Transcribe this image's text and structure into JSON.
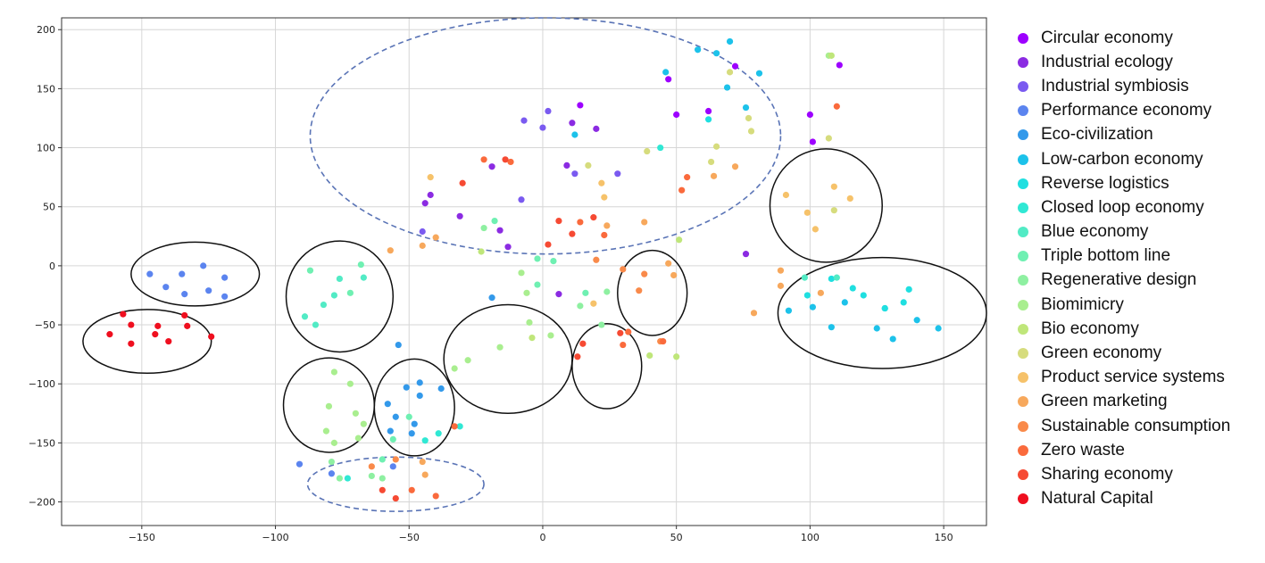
{
  "chart_data": {
    "type": "scatter",
    "title": "",
    "xlabel": "",
    "ylabel": "",
    "xlim": [
      -180,
      166
    ],
    "ylim": [
      -220,
      210
    ],
    "xticks": [
      -150,
      -100,
      -50,
      0,
      50,
      100,
      150
    ],
    "yticks": [
      -200,
      -150,
      -100,
      -50,
      0,
      50,
      100,
      150,
      200
    ],
    "xtick_labels": [
      "−150",
      "−100",
      "−50",
      "0",
      "50",
      "100",
      "150"
    ],
    "ytick_labels": [
      "−200",
      "−150",
      "−100",
      "−50",
      "0",
      "50",
      "100",
      "150",
      "200"
    ],
    "grid": true,
    "legend_position": "right",
    "series": [
      {
        "name": "Circular economy",
        "color": "#9d00ff",
        "points": [
          [
            14,
            136
          ],
          [
            47,
            158
          ],
          [
            50,
            128
          ],
          [
            62,
            131
          ],
          [
            72,
            169
          ],
          [
            100,
            128
          ],
          [
            101,
            105
          ],
          [
            111,
            170
          ]
        ]
      },
      {
        "name": "Industrial ecology",
        "color": "#8b2be2",
        "points": [
          [
            -44,
            53
          ],
          [
            -42,
            60
          ],
          [
            -31,
            42
          ],
          [
            -19,
            84
          ],
          [
            -16,
            30
          ],
          [
            -13,
            16
          ],
          [
            6,
            -24
          ],
          [
            9,
            85
          ],
          [
            11,
            121
          ],
          [
            20,
            116
          ],
          [
            76,
            10
          ]
        ]
      },
      {
        "name": "Industrial symbiosis",
        "color": "#7a5af0",
        "points": [
          [
            -45,
            29
          ],
          [
            -8,
            56
          ],
          [
            -7,
            123
          ],
          [
            0,
            117
          ],
          [
            2,
            131
          ],
          [
            12,
            78
          ],
          [
            28,
            78
          ]
        ]
      },
      {
        "name": "Performance economy",
        "color": "#5b84ef",
        "points": [
          [
            -147,
            -7
          ],
          [
            -141,
            -18
          ],
          [
            -135,
            -7
          ],
          [
            -134,
            -24
          ],
          [
            -127,
            0
          ],
          [
            -125,
            -21
          ],
          [
            -119,
            -10
          ],
          [
            -119,
            -26
          ],
          [
            -91,
            -168
          ],
          [
            -79,
            -176
          ],
          [
            -56,
            -170
          ]
        ]
      },
      {
        "name": "Eco-civilization",
        "color": "#3399ea",
        "points": [
          [
            -58,
            -117
          ],
          [
            -57,
            -140
          ],
          [
            -55,
            -128
          ],
          [
            -54,
            -67
          ],
          [
            -51,
            -103
          ],
          [
            -49,
            -142
          ],
          [
            -48,
            -134
          ],
          [
            -46,
            -110
          ],
          [
            -46,
            -99
          ],
          [
            -38,
            -104
          ],
          [
            -19,
            -27
          ]
        ]
      },
      {
        "name": "Low-carbon economy",
        "color": "#1cc2ea",
        "points": [
          [
            12,
            111
          ],
          [
            46,
            164
          ],
          [
            58,
            183
          ],
          [
            65,
            180
          ],
          [
            69,
            151
          ],
          [
            70,
            190
          ],
          [
            76,
            134
          ],
          [
            81,
            163
          ],
          [
            92,
            -38
          ],
          [
            101,
            -35
          ],
          [
            108,
            -52
          ],
          [
            113,
            -31
          ],
          [
            125,
            -53
          ],
          [
            128,
            -36
          ],
          [
            131,
            -62
          ],
          [
            140,
            -46
          ],
          [
            148,
            -53
          ]
        ]
      },
      {
        "name": "Reverse logistics",
        "color": "#1fdfe0",
        "points": [
          [
            62,
            124
          ],
          [
            99,
            -25
          ],
          [
            108,
            -11
          ],
          [
            116,
            -19
          ],
          [
            120,
            -25
          ],
          [
            128,
            -36
          ],
          [
            137,
            -20
          ],
          [
            135,
            -31
          ]
        ]
      },
      {
        "name": "Closed loop economy",
        "color": "#30e8d4",
        "points": [
          [
            -73,
            -180
          ],
          [
            -44,
            -148
          ],
          [
            -39,
            -142
          ],
          [
            -31,
            -136
          ],
          [
            44,
            100
          ]
        ]
      },
      {
        "name": "Blue economy",
        "color": "#52ebc5",
        "points": [
          [
            -89,
            -43
          ],
          [
            -85,
            -50
          ],
          [
            -82,
            -33
          ],
          [
            -78,
            -25
          ],
          [
            -76,
            -11
          ],
          [
            -67,
            -10
          ],
          [
            98,
            -10
          ],
          [
            110,
            -10
          ]
        ]
      },
      {
        "name": "Triple bottom line",
        "color": "#6ff0b2",
        "points": [
          [
            -87,
            -4
          ],
          [
            -72,
            -23
          ],
          [
            -68,
            1
          ],
          [
            -60,
            -164
          ],
          [
            -56,
            -147
          ],
          [
            -50,
            -128
          ],
          [
            -18,
            38
          ],
          [
            -2,
            6
          ],
          [
            -2,
            -16
          ],
          [
            4,
            4
          ],
          [
            16,
            -23
          ]
        ]
      },
      {
        "name": "Regenerative design",
        "color": "#8ef0a1",
        "points": [
          [
            -79,
            -166
          ],
          [
            -76,
            -180
          ],
          [
            -64,
            -178
          ],
          [
            -60,
            -180
          ],
          [
            -22,
            32
          ],
          [
            14,
            -34
          ],
          [
            22,
            -50
          ],
          [
            24,
            -22
          ]
        ]
      },
      {
        "name": "Biomimicry",
        "color": "#a9ee8f",
        "points": [
          [
            -81,
            -140
          ],
          [
            -80,
            -119
          ],
          [
            -78,
            -90
          ],
          [
            -78,
            -150
          ],
          [
            -72,
            -100
          ],
          [
            -70,
            -125
          ],
          [
            -69,
            -146
          ],
          [
            -67,
            -134
          ],
          [
            -33,
            -87
          ],
          [
            -28,
            -80
          ],
          [
            -16,
            -69
          ],
          [
            -8,
            -6
          ],
          [
            -6,
            -23
          ],
          [
            -5,
            -48
          ],
          [
            3,
            -59
          ],
          [
            107,
            178
          ]
        ]
      },
      {
        "name": "Bio economy",
        "color": "#bfe67a",
        "points": [
          [
            -23,
            12
          ],
          [
            -4,
            -61
          ],
          [
            40,
            -76
          ],
          [
            50,
            -77
          ],
          [
            51,
            22
          ],
          [
            108,
            178
          ]
        ]
      },
      {
        "name": "Green economy",
        "color": "#d6dc7d",
        "points": [
          [
            17,
            85
          ],
          [
            39,
            97
          ],
          [
            63,
            88
          ],
          [
            65,
            101
          ],
          [
            70,
            164
          ],
          [
            77,
            125
          ],
          [
            78,
            114
          ],
          [
            107,
            108
          ],
          [
            109,
            47
          ]
        ]
      },
      {
        "name": "Product service systems",
        "color": "#f6c26a",
        "points": [
          [
            -42,
            75
          ],
          [
            19,
            -32
          ],
          [
            22,
            70
          ],
          [
            23,
            58
          ],
          [
            91,
            60
          ],
          [
            99,
            45
          ],
          [
            102,
            31
          ],
          [
            109,
            67
          ],
          [
            115,
            57
          ]
        ]
      },
      {
        "name": "Green marketing",
        "color": "#f7a85c",
        "points": [
          [
            -57,
            13
          ],
          [
            -45,
            17
          ],
          [
            -40,
            24
          ],
          [
            -45,
            -166
          ],
          [
            -44,
            -177
          ],
          [
            24,
            34
          ],
          [
            38,
            37
          ],
          [
            47,
            2
          ],
          [
            49,
            -8
          ],
          [
            64,
            76
          ],
          [
            72,
            84
          ],
          [
            79,
            -40
          ],
          [
            89,
            -17
          ],
          [
            89,
            -4
          ],
          [
            104,
            -23
          ]
        ]
      },
      {
        "name": "Sustainable consumption",
        "color": "#f98a4a",
        "points": [
          [
            -64,
            -170
          ],
          [
            -55,
            -164
          ],
          [
            20,
            5
          ],
          [
            30,
            -3
          ],
          [
            36,
            -21
          ],
          [
            38,
            -7
          ],
          [
            44,
            -64
          ]
        ]
      },
      {
        "name": "Zero waste",
        "color": "#fa6a3c",
        "points": [
          [
            -49,
            -190
          ],
          [
            -40,
            -195
          ],
          [
            -33,
            -136
          ],
          [
            -22,
            90
          ],
          [
            -12,
            88
          ],
          [
            14,
            37
          ],
          [
            23,
            26
          ],
          [
            30,
            -67
          ],
          [
            32,
            -56
          ],
          [
            45,
            -64
          ],
          [
            54,
            75
          ],
          [
            52,
            64
          ],
          [
            110,
            135
          ]
        ]
      },
      {
        "name": "Sharing economy",
        "color": "#f64a33",
        "points": [
          [
            -60,
            -190
          ],
          [
            -55,
            -197
          ],
          [
            -30,
            70
          ],
          [
            -14,
            90
          ],
          [
            2,
            18
          ],
          [
            6,
            38
          ],
          [
            11,
            27
          ],
          [
            13,
            -77
          ],
          [
            15,
            -66
          ],
          [
            19,
            41
          ],
          [
            29,
            -57
          ]
        ]
      },
      {
        "name": "Natural Capital",
        "color": "#ef0f1f",
        "points": [
          [
            -162,
            -58
          ],
          [
            -157,
            -41
          ],
          [
            -154,
            -50
          ],
          [
            -154,
            -66
          ],
          [
            -145,
            -58
          ],
          [
            -144,
            -51
          ],
          [
            -140,
            -64
          ],
          [
            -134,
            -42
          ],
          [
            -133,
            -51
          ],
          [
            -124,
            -60
          ]
        ]
      }
    ],
    "annotations": [
      {
        "shape": "ellipse",
        "style": "dashed",
        "color": "#5a74b6",
        "cx": 1,
        "cy": 110,
        "rx": 88,
        "ry": 100
      },
      {
        "shape": "ellipse",
        "style": "dashed",
        "color": "#5a74b6",
        "cx": -55,
        "cy": -185,
        "rx": 33,
        "ry": 23
      },
      {
        "shape": "ellipse",
        "style": "solid",
        "color": "#111111",
        "cx": -130,
        "cy": -7,
        "rx": 24,
        "ry": 27
      },
      {
        "shape": "ellipse",
        "style": "solid",
        "color": "#111111",
        "cx": -148,
        "cy": -64,
        "rx": 24,
        "ry": 27
      },
      {
        "shape": "ellipse",
        "style": "solid",
        "color": "#111111",
        "cx": -76,
        "cy": -26,
        "rx": 20,
        "ry": 47
      },
      {
        "shape": "ellipse",
        "style": "solid",
        "color": "#111111",
        "cx": -80,
        "cy": -118,
        "rx": 17,
        "ry": 40
      },
      {
        "shape": "ellipse",
        "style": "solid",
        "color": "#111111",
        "cx": -48,
        "cy": -120,
        "rx": 15,
        "ry": 41
      },
      {
        "shape": "ellipse",
        "style": "solid",
        "color": "#111111",
        "cx": -13,
        "cy": -79,
        "rx": 24,
        "ry": 46
      },
      {
        "shape": "ellipse",
        "style": "solid",
        "color": "#111111",
        "cx": 24,
        "cy": -85,
        "rx": 13,
        "ry": 36
      },
      {
        "shape": "ellipse",
        "style": "solid",
        "color": "#111111",
        "cx": 41,
        "cy": -23,
        "rx": 13,
        "ry": 36
      },
      {
        "shape": "ellipse",
        "style": "solid",
        "color": "#111111",
        "cx": 106,
        "cy": 51,
        "rx": 21,
        "ry": 48
      },
      {
        "shape": "ellipse",
        "style": "solid",
        "color": "#111111",
        "cx": 127,
        "cy": -40,
        "rx": 39,
        "ry": 47
      }
    ]
  }
}
